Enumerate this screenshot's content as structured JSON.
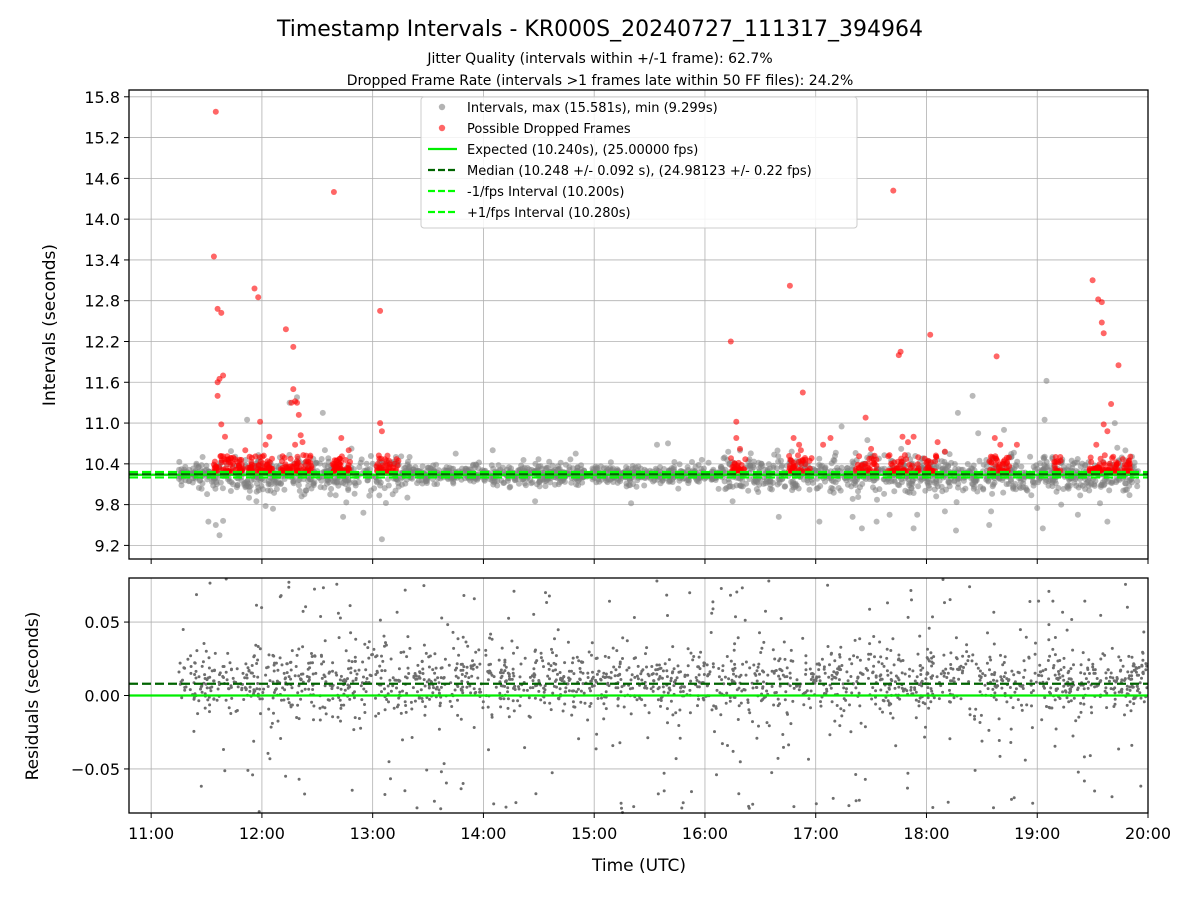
{
  "title": "Timestamp Intervals - KR000S_20240727_111317_394964",
  "subtitle_1": "Jitter Quality (intervals within +/-1 frame): 62.7%",
  "subtitle_2": "Dropped Frame Rate (intervals >1 frames late within 50 FF files): 24.2%",
  "colors": {
    "intervals": "#808080",
    "dropped": "#ff0000",
    "expected": "#00ee00",
    "median": "#006400",
    "fps_interval": "#00ff00",
    "grid": "#b0b0b0"
  },
  "chart_data": [
    {
      "id": "intervals-panel",
      "type": "scatter",
      "ylabel": "Intervals (seconds)",
      "ylim": [
        9.0,
        15.9
      ],
      "xlim": [
        "10:48",
        "20:00"
      ],
      "yticks": [
        "9.2",
        "9.8",
        "10.4",
        "11.0",
        "11.6",
        "12.2",
        "12.8",
        "13.4",
        "14.0",
        "14.6",
        "15.2",
        "15.8"
      ],
      "grid": true,
      "legend_position": "upper center",
      "legend": [
        {
          "label": "Intervals, max (15.581s), min (9.299s)",
          "kind": "marker",
          "color": "#808080"
        },
        {
          "label": "Possible Dropped Frames",
          "kind": "marker",
          "color": "#ff0000"
        },
        {
          "label": "Expected (10.240s), (25.00000 fps)",
          "kind": "solid",
          "color": "#00ee00"
        },
        {
          "label": "Median (10.248 +/- 0.092 s), (24.98123 +/- 0.22 fps)",
          "kind": "dashed",
          "color": "#006400"
        },
        {
          "label": "-1/fps Interval (10.200s)",
          "kind": "dashed",
          "color": "#00ff00"
        },
        {
          "label": "+1/fps Interval (10.280s)",
          "kind": "dashed",
          "color": "#00ff00"
        }
      ],
      "reference_lines": [
        {
          "name": "Expected",
          "y": 10.24,
          "style": "solid",
          "color": "#00ee00"
        },
        {
          "name": "Median",
          "y": 10.248,
          "style": "dashed",
          "color": "#006400"
        },
        {
          "name": "-1/fps Interval",
          "y": 10.2,
          "style": "dashed",
          "color": "#00ff00"
        },
        {
          "name": "+1/fps Interval",
          "y": 10.28,
          "style": "dashed",
          "color": "#00ff00"
        }
      ],
      "series": [
        {
          "name": "Intervals, max (15.581s), min (9.299s)",
          "note_generation": "dense band 11:15-19:55 around 10.24 s (approx. 2200 points)",
          "time_range": [
            "11:15",
            "19:55"
          ],
          "center": 10.24,
          "max": 15.581,
          "min": 9.299,
          "outliers": [
            {
              "t": "11:31",
              "y": 9.55
            },
            {
              "t": "11:35",
              "y": 9.5
            },
            {
              "t": "11:39",
              "y": 9.56
            },
            {
              "t": "11:37",
              "y": 9.35
            },
            {
              "t": "11:52",
              "y": 11.05
            },
            {
              "t": "11:53",
              "y": 9.9
            },
            {
              "t": "11:57",
              "y": 9.85
            },
            {
              "t": "12:02",
              "y": 9.78
            },
            {
              "t": "12:06",
              "y": 9.74
            },
            {
              "t": "12:15",
              "y": 11.3
            },
            {
              "t": "12:19",
              "y": 11.38
            },
            {
              "t": "12:23",
              "y": 9.95
            },
            {
              "t": "12:33",
              "y": 11.15
            },
            {
              "t": "12:37",
              "y": 9.95
            },
            {
              "t": "12:44",
              "y": 9.62
            },
            {
              "t": "12:55",
              "y": 9.68
            },
            {
              "t": "13:05",
              "y": 9.29
            },
            {
              "t": "13:20",
              "y": 10.5
            },
            {
              "t": "13:45",
              "y": 10.55
            },
            {
              "t": "14:05",
              "y": 10.6
            },
            {
              "t": "14:28",
              "y": 9.85
            },
            {
              "t": "14:50",
              "y": 10.55
            },
            {
              "t": "15:20",
              "y": 9.82
            },
            {
              "t": "15:34",
              "y": 10.68
            },
            {
              "t": "15:40",
              "y": 10.7
            },
            {
              "t": "16:15",
              "y": 9.85
            },
            {
              "t": "16:40",
              "y": 9.62
            },
            {
              "t": "16:47",
              "y": 10.58
            },
            {
              "t": "17:02",
              "y": 9.55
            },
            {
              "t": "17:14",
              "y": 10.95
            },
            {
              "t": "17:20",
              "y": 9.62
            },
            {
              "t": "17:25",
              "y": 9.45
            },
            {
              "t": "17:28",
              "y": 10.75
            },
            {
              "t": "17:33",
              "y": 9.55
            },
            {
              "t": "17:40",
              "y": 9.65
            },
            {
              "t": "17:53",
              "y": 9.45
            },
            {
              "t": "17:55",
              "y": 9.65
            },
            {
              "t": "18:10",
              "y": 9.7
            },
            {
              "t": "18:16",
              "y": 9.42
            },
            {
              "t": "18:17",
              "y": 11.15
            },
            {
              "t": "18:25",
              "y": 11.4
            },
            {
              "t": "18:28",
              "y": 10.85
            },
            {
              "t": "18:34",
              "y": 9.5
            },
            {
              "t": "18:35",
              "y": 9.7
            },
            {
              "t": "18:42",
              "y": 10.9
            },
            {
              "t": "19:00",
              "y": 9.75
            },
            {
              "t": "19:03",
              "y": 9.45
            },
            {
              "t": "19:04",
              "y": 11.05
            },
            {
              "t": "19:05",
              "y": 11.62
            },
            {
              "t": "19:13",
              "y": 9.8
            },
            {
              "t": "19:22",
              "y": 9.65
            },
            {
              "t": "19:34",
              "y": 9.82
            },
            {
              "t": "19:38",
              "y": 9.55
            },
            {
              "t": "19:42",
              "y": 11.0
            }
          ]
        },
        {
          "name": "Possible Dropped Frames",
          "note_generation": "clusters of dropped frames between 10.29 and ~10.5 s",
          "clusters": [
            {
              "t0": "11:34",
              "t1": "11:50",
              "n": 60
            },
            {
              "t0": "11:52",
              "t1": "12:06",
              "n": 55
            },
            {
              "t0": "12:10",
              "t1": "12:27",
              "n": 60
            },
            {
              "t0": "12:38",
              "t1": "12:48",
              "n": 40
            },
            {
              "t0": "13:02",
              "t1": "13:14",
              "n": 35
            },
            {
              "t0": "16:14",
              "t1": "16:22",
              "n": 28
            },
            {
              "t0": "16:45",
              "t1": "16:58",
              "n": 35
            },
            {
              "t0": "17:21",
              "t1": "17:33",
              "n": 30
            },
            {
              "t0": "17:39",
              "t1": "17:56",
              "n": 45
            },
            {
              "t0": "17:59",
              "t1": "18:07",
              "n": 25
            },
            {
              "t0": "18:34",
              "t1": "18:45",
              "n": 35
            },
            {
              "t0": "19:09",
              "t1": "19:13",
              "n": 12
            },
            {
              "t0": "19:28",
              "t1": "19:44",
              "n": 60
            },
            {
              "t0": "19:46",
              "t1": "19:51",
              "n": 18
            }
          ],
          "outliers": [
            {
              "t": "11:35",
              "y": 15.581
            },
            {
              "t": "11:34",
              "y": 13.45
            },
            {
              "t": "11:36",
              "y": 12.68
            },
            {
              "t": "11:38",
              "y": 12.62
            },
            {
              "t": "11:37",
              "y": 11.65
            },
            {
              "t": "11:36",
              "y": 11.6
            },
            {
              "t": "11:36",
              "y": 11.4
            },
            {
              "t": "11:39",
              "y": 11.7
            },
            {
              "t": "11:38",
              "y": 10.98
            },
            {
              "t": "11:40",
              "y": 10.8
            },
            {
              "t": "11:51",
              "y": 10.6
            },
            {
              "t": "11:56",
              "y": 12.98
            },
            {
              "t": "11:58",
              "y": 12.85
            },
            {
              "t": "11:59",
              "y": 11.02
            },
            {
              "t": "12:02",
              "y": 10.68
            },
            {
              "t": "12:04",
              "y": 10.8
            },
            {
              "t": "12:13",
              "y": 12.38
            },
            {
              "t": "12:16",
              "y": 11.3
            },
            {
              "t": "12:17",
              "y": 12.12
            },
            {
              "t": "12:17",
              "y": 11.5
            },
            {
              "t": "12:18",
              "y": 11.32
            },
            {
              "t": "12:19",
              "y": 11.3
            },
            {
              "t": "12:20",
              "y": 11.12
            },
            {
              "t": "12:21",
              "y": 10.82
            },
            {
              "t": "12:18",
              "y": 10.68
            },
            {
              "t": "12:22",
              "y": 10.72
            },
            {
              "t": "12:39",
              "y": 14.4
            },
            {
              "t": "12:43",
              "y": 10.78
            },
            {
              "t": "12:47",
              "y": 10.6
            },
            {
              "t": "13:04",
              "y": 12.65
            },
            {
              "t": "13:04",
              "y": 11.0
            },
            {
              "t": "13:05",
              "y": 10.88
            },
            {
              "t": "16:14",
              "y": 12.2
            },
            {
              "t": "16:17",
              "y": 11.02
            },
            {
              "t": "16:17",
              "y": 10.78
            },
            {
              "t": "16:19",
              "y": 10.62
            },
            {
              "t": "16:46",
              "y": 13.02
            },
            {
              "t": "16:48",
              "y": 10.78
            },
            {
              "t": "16:51",
              "y": 10.68
            },
            {
              "t": "16:53",
              "y": 11.45
            },
            {
              "t": "16:52",
              "y": 10.6
            },
            {
              "t": "17:04",
              "y": 10.68
            },
            {
              "t": "17:08",
              "y": 10.78
            },
            {
              "t": "17:27",
              "y": 11.08
            },
            {
              "t": "17:30",
              "y": 10.62
            },
            {
              "t": "17:42",
              "y": 14.42
            },
            {
              "t": "17:45",
              "y": 12.0
            },
            {
              "t": "17:46",
              "y": 12.05
            },
            {
              "t": "17:47",
              "y": 10.8
            },
            {
              "t": "17:50",
              "y": 10.72
            },
            {
              "t": "17:53",
              "y": 10.8
            },
            {
              "t": "18:02",
              "y": 12.3
            },
            {
              "t": "18:06",
              "y": 10.72
            },
            {
              "t": "18:10",
              "y": 10.58
            },
            {
              "t": "18:38",
              "y": 11.98
            },
            {
              "t": "18:37",
              "y": 10.78
            },
            {
              "t": "18:40",
              "y": 10.68
            },
            {
              "t": "18:49",
              "y": 10.68
            },
            {
              "t": "19:10",
              "y": 10.5
            },
            {
              "t": "19:30",
              "y": 13.1
            },
            {
              "t": "19:33",
              "y": 12.82
            },
            {
              "t": "19:35",
              "y": 12.78
            },
            {
              "t": "19:35",
              "y": 12.48
            },
            {
              "t": "19:36",
              "y": 12.32
            },
            {
              "t": "19:36",
              "y": 10.98
            },
            {
              "t": "19:38",
              "y": 10.88
            },
            {
              "t": "19:40",
              "y": 11.28
            },
            {
              "t": "19:44",
              "y": 11.85
            },
            {
              "t": "19:32",
              "y": 10.68
            }
          ]
        }
      ]
    },
    {
      "id": "residuals-panel",
      "type": "scatter",
      "xlabel": "Time (UTC)",
      "ylabel": "Residuals (seconds)",
      "ylim": [
        -0.08,
        0.08
      ],
      "xlim": [
        "10:48",
        "20:00"
      ],
      "yticks": [
        "−0.05",
        "0.00",
        "0.05"
      ],
      "xticks": [
        "11:00",
        "12:00",
        "13:00",
        "14:00",
        "15:00",
        "16:00",
        "17:00",
        "18:00",
        "19:00",
        "20:00"
      ],
      "grid": true,
      "reference_lines": [
        {
          "name": "Expected",
          "y": 0.0,
          "style": "solid",
          "color": "#00ee00"
        },
        {
          "name": "Median",
          "y": 0.008,
          "style": "dashed",
          "color": "#006400"
        }
      ],
      "series": [
        {
          "name": "Residuals",
          "note_generation": "approx. 2000 points 11:15-20:00, dense band -0.01..0.03, sparse spread to +/-0.08",
          "time_range": [
            "11:15",
            "20:00"
          ]
        }
      ]
    }
  ]
}
